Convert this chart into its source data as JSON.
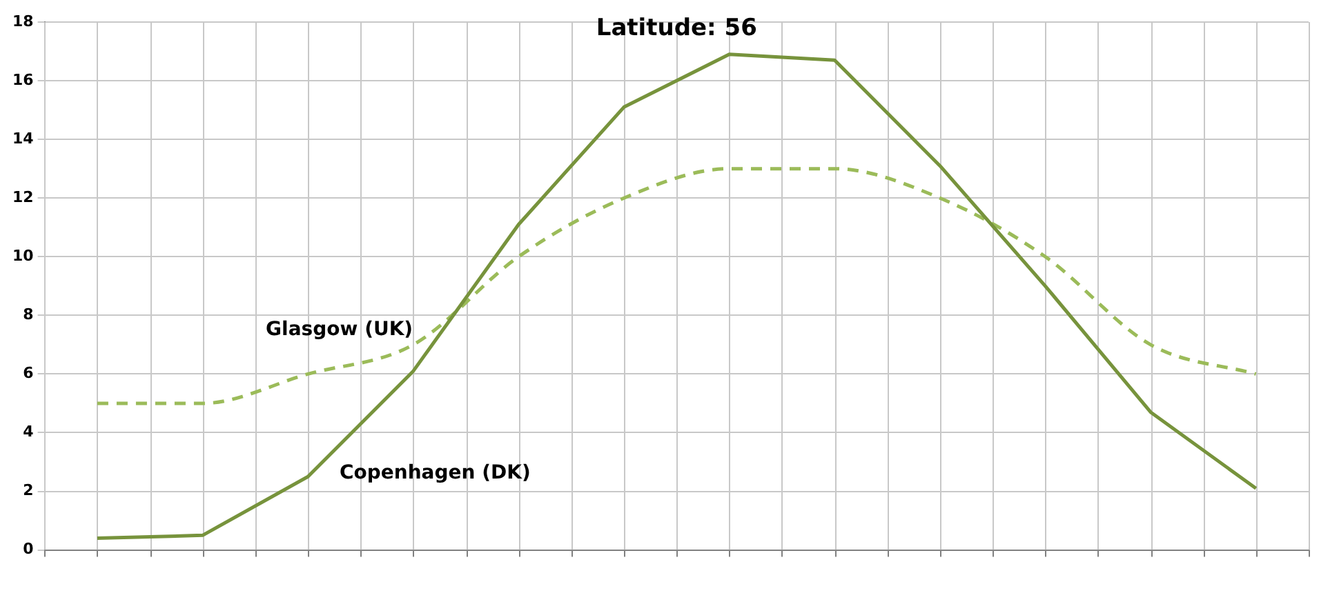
{
  "chart_data": {
    "type": "line",
    "title": "Latitude: 56",
    "categories": [
      null,
      null,
      null,
      null,
      null,
      null,
      null,
      null,
      null,
      null,
      null,
      null
    ],
    "series": [
      {
        "name": "Copenhagen (DK)",
        "color": "#77933c",
        "line_style": "solid",
        "values": [
          0.4,
          0.5,
          2.5,
          6.1,
          11.1,
          15.1,
          16.9,
          16.7,
          13.1,
          9.0,
          4.7,
          2.1
        ]
      },
      {
        "name": "Glasgow (UK)",
        "color": "#9bbb59",
        "line_style": "dashed",
        "values": [
          5,
          5,
          6,
          7,
          10,
          12,
          13,
          13,
          12,
          10,
          7,
          6
        ]
      }
    ],
    "ylim": [
      0,
      18
    ],
    "yticks": [
      0,
      2,
      4,
      6,
      8,
      10,
      12,
      14,
      16,
      18
    ],
    "grid": true,
    "legend": false,
    "marker": "none"
  }
}
